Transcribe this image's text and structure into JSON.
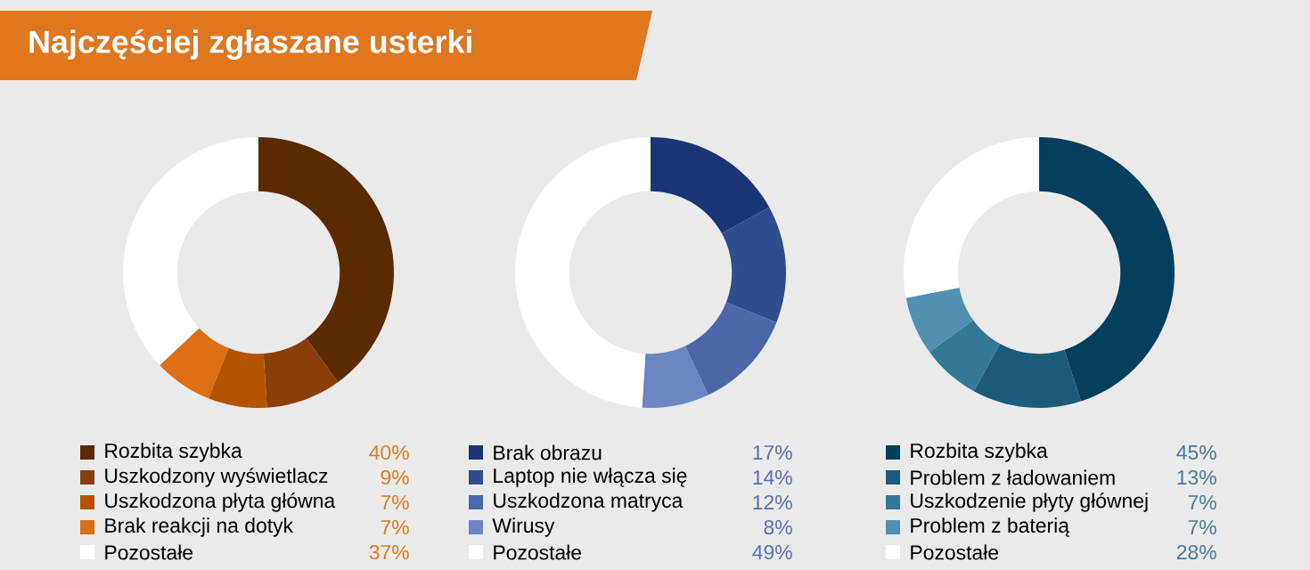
{
  "chart_data": [
    {
      "type": "donut",
      "title": "Najczęściej zgłaszane usterki",
      "categories": [
        "Rozbita szybka",
        "Uszkodzony wyświetlacz",
        "Uszkodzona płyta główna",
        "Brak reakcji na dotyk",
        "Pozostałe"
      ],
      "values": [
        40,
        9,
        7,
        7,
        37
      ],
      "value_labels": [
        "40%",
        "9%",
        "7%",
        "7%",
        "37%"
      ],
      "colors": [
        "#5c2a00",
        "#8a3e08",
        "#b35300",
        "#dc6e14",
        "#ffffff"
      ],
      "legend": "bottom"
    },
    {
      "type": "donut",
      "categories": [
        "Brak obrazu",
        "Laptop nie włącza się",
        "Uszkodzona matryca",
        "Wirusy",
        "Pozostałe"
      ],
      "values": [
        17,
        14,
        12,
        8,
        49
      ],
      "value_labels": [
        "17%",
        "14%",
        "12%",
        "8%",
        "49%"
      ],
      "colors": [
        "#1a3478",
        "#2e4d8e",
        "#4a67a8",
        "#6a87c4",
        "#ffffff"
      ],
      "legend": "bottom"
    },
    {
      "type": "donut",
      "categories": [
        "Rozbita szybka",
        "Problem z ładowaniem",
        "Uszkodzenie płyty głównej",
        "Problem z baterią",
        "Pozostałe"
      ],
      "values": [
        45,
        13,
        7,
        7,
        28
      ],
      "value_labels": [
        "45%",
        "13%",
        "7%",
        "7%",
        "28%"
      ],
      "colors": [
        "#053f5e",
        "#1c5b7a",
        "#357896",
        "#5090b0",
        "#ffffff"
      ],
      "legend": "bottom"
    }
  ]
}
